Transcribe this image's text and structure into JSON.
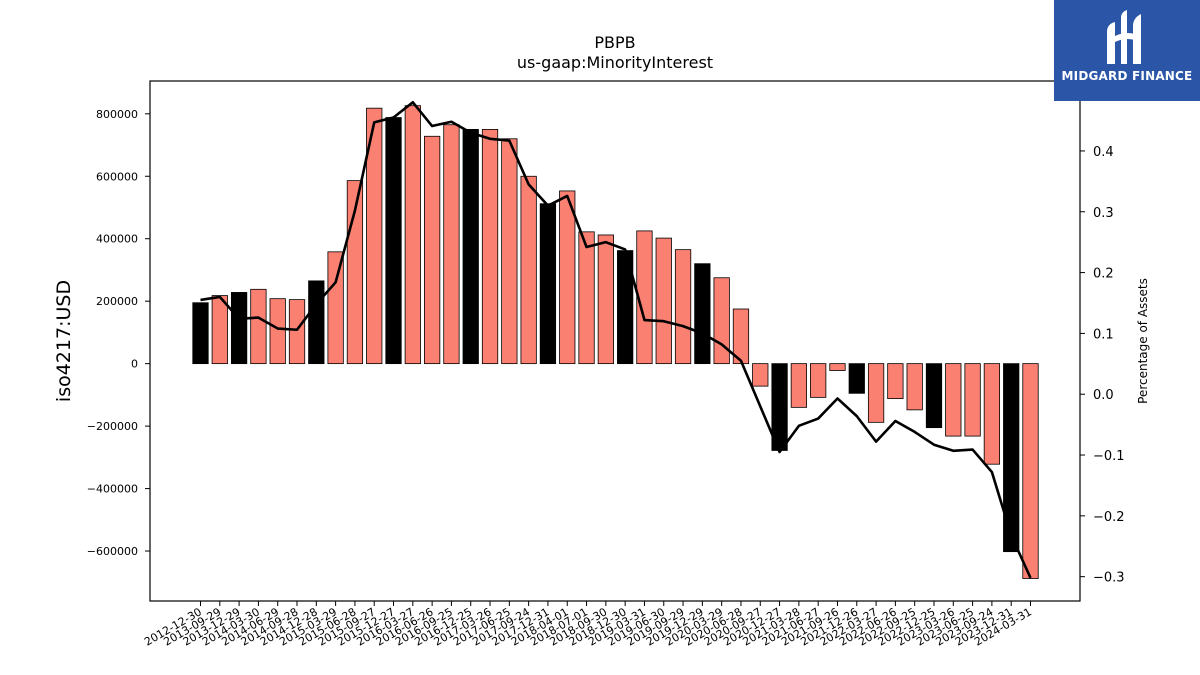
{
  "brand": {
    "name": "MIDGARD FINANCE",
    "icon": "midgard-logo-icon",
    "bg_color": "#2b56a8"
  },
  "chart_data": {
    "type": "bar",
    "title": "PBPB",
    "subtitle": "us-gaap:MinorityInterest",
    "ylabel": "iso4217:USD",
    "y2label": "Percentage of Assets",
    "ylim": [
      -760000,
      905000
    ],
    "y2lim": [
      -0.34,
      0.515
    ],
    "yticks": [
      -600000,
      -400000,
      -200000,
      0,
      200000,
      400000,
      600000,
      800000
    ],
    "ytick_labels": [
      "−600000",
      "−400000",
      "−200000",
      "0",
      "200000",
      "400000",
      "600000",
      "800000"
    ],
    "y2ticks": [
      -0.3,
      -0.2,
      -0.1,
      0.0,
      0.1,
      0.2,
      0.3,
      0.4
    ],
    "y2tick_labels": [
      "−0.3",
      "−0.2",
      "−0.1",
      "0.0",
      "0.1",
      "0.2",
      "0.3",
      "0.4"
    ],
    "categories": [
      "2012-12-30",
      "2013-09-29",
      "2013-12-29",
      "2014-03-30",
      "2014-06-29",
      "2014-09-28",
      "2014-12-28",
      "2015-03-29",
      "2015-06-28",
      "2015-09-27",
      "2015-12-27",
      "2016-03-27",
      "2016-06-26",
      "2016-09-25",
      "2016-12-25",
      "2017-03-26",
      "2017-06-25",
      "2017-09-24",
      "2017-12-31",
      "2018-04-01",
      "2018-07-01",
      "2018-09-30",
      "2018-12-30",
      "2019-03-31",
      "2019-06-30",
      "2019-09-29",
      "2019-12-29",
      "2020-03-29",
      "2020-06-28",
      "2020-09-27",
      "2020-12-27",
      "2021-03-28",
      "2021-06-27",
      "2021-09-26",
      "2021-12-26",
      "2022-03-27",
      "2022-06-26",
      "2022-09-25",
      "2022-12-25",
      "2023-03-26",
      "2023-06-25",
      "2023-09-24",
      "2023-12-31",
      "2024-03-31"
    ],
    "series": [
      {
        "values": [
          195000,
          218000,
          228000,
          238000,
          208000,
          205000,
          265000,
          358000,
          586000,
          818000,
          788000,
          826000,
          728000,
          765000,
          750000,
          750000,
          720000,
          600000,
          512000,
          553000,
          422000,
          412000,
          362000,
          425000,
          402000,
          365000,
          320000,
          275000,
          175000,
          -72000,
          -278000,
          -140000,
          -108000,
          -22000,
          -95000,
          -188000,
          -112000,
          -148000,
          -205000,
          -232000,
          -232000,
          -322000,
          -602000,
          -688000
        ]
      },
      {
        "values": [
          0.155,
          0.16,
          0.124,
          0.126,
          0.108,
          0.106,
          0.148,
          0.184,
          0.302,
          0.447,
          0.455,
          0.48,
          0.441,
          0.448,
          0.43,
          0.42,
          0.417,
          0.345,
          0.31,
          0.326,
          0.242,
          0.25,
          0.238,
          0.122,
          0.12,
          0.112,
          0.1,
          0.082,
          0.055,
          -0.02,
          -0.095,
          -0.052,
          -0.04,
          -0.007,
          -0.036,
          -0.078,
          -0.044,
          -0.062,
          -0.083,
          -0.093,
          -0.091,
          -0.128,
          -0.232,
          -0.302
        ]
      }
    ],
    "bar_colors": {
      "default": "#fa8072",
      "highlight": "#000000"
    },
    "highlight_indices": [
      0,
      2,
      6,
      10,
      14,
      18,
      22,
      26,
      30,
      34,
      38,
      42
    ],
    "line_color": "#000000",
    "grid": false
  }
}
